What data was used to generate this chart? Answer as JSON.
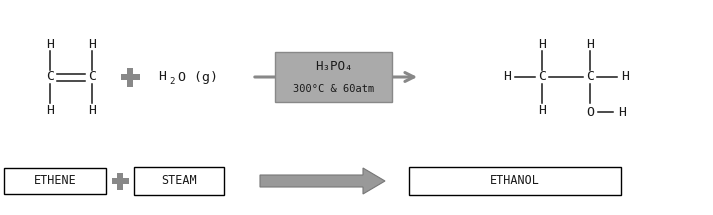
{
  "bg_color": "#ffffff",
  "bond_color": "#1a1a1a",
  "text_color": "#1a1a1a",
  "gray": "#888888",
  "box_fill": "#aaaaaa",
  "catalyst_line1": "H₃PO₄",
  "catalyst_line2": "300°C & 60atm",
  "ethene_label": "ETHENE",
  "steam_label": "STEAM",
  "ethanol_label": "ETHANOL"
}
